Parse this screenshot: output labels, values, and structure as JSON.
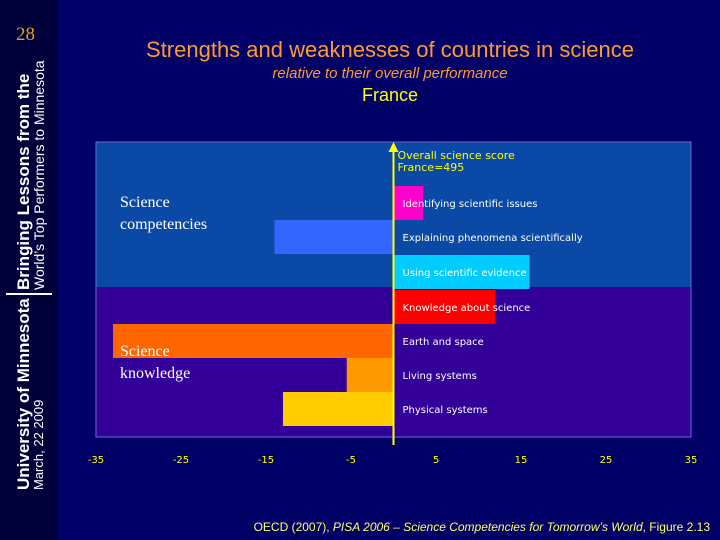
{
  "slide_number": "28",
  "sidebar": {
    "line1": "Bringing Lessons from the",
    "line2": "World’s Top Performers to Minnesota",
    "line3": "University of Minnesota",
    "line4": "March, 22 2009"
  },
  "title": "Strengths and weaknesses of countries in science",
  "subtitle": "relative to their overall performance",
  "country": "France",
  "footer": {
    "prefix": "OECD (2007), ",
    "italic": "PISA 2006 – Science Competencies for Tomorrow’s World",
    "suffix": ", Figure 2.13"
  },
  "chart_data": {
    "type": "bar",
    "orientation": "horizontal",
    "reference_line": {
      "value": 0,
      "label_line1": "Overall science score",
      "label_line2": "France=495"
    },
    "xlim": [
      -35,
      35
    ],
    "xticks": [
      "-35",
      "-25",
      "-15",
      "-5",
      "5",
      "15",
      "25",
      "35"
    ],
    "groups": [
      {
        "label_line1": "Science",
        "label_line2": "competencies",
        "color": "#0a4aa6"
      },
      {
        "label_line1": "Science",
        "label_line2": "knowledge",
        "color": "#330099"
      }
    ],
    "categories": [
      "Identifying scientific issues",
      "Explaining phenomena scientifically",
      "Using scientific evidence",
      "Knowledge about science",
      "Earth and space",
      "Living systems",
      "Physical systems"
    ],
    "values": [
      3.5,
      -14,
      16,
      12,
      -33,
      -5.5,
      -13
    ],
    "colors": [
      "#ff00cc",
      "#3366ff",
      "#00ccff",
      "#ff0000",
      "#ff6600",
      "#ff9900",
      "#ffcc00"
    ]
  }
}
